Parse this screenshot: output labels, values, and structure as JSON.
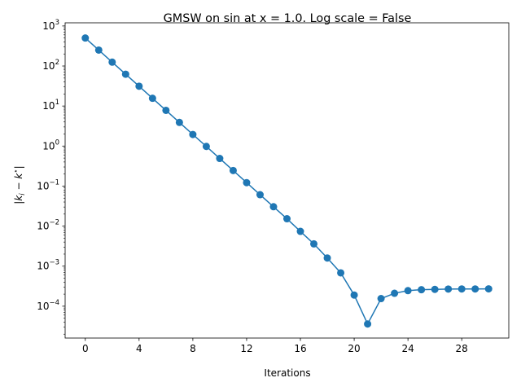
{
  "chart_data": {
    "type": "line",
    "title": "GMSW on sin at x = 1.0. Log scale = False",
    "xlabel": "Iterations",
    "ylabel": "|k_i − k*|",
    "ylabel_parts": {
      "bar_open": "|",
      "k": "k",
      "i": "i",
      "minus": " − ",
      "k2": "k",
      "star": "⋆",
      "bar_close": "|"
    },
    "xlim": [
      -1.5,
      31.5
    ],
    "yscale": "log",
    "ylim": [
      1.6e-05,
      1200
    ],
    "xticks": [
      0,
      4,
      8,
      12,
      16,
      20,
      24,
      28
    ],
    "xtick_labels": [
      "0",
      "4",
      "8",
      "12",
      "16",
      "20",
      "24",
      "28"
    ],
    "yticks": [
      {
        "value": 1000,
        "base": "10",
        "exp": "3"
      },
      {
        "value": 100,
        "base": "10",
        "exp": "2"
      },
      {
        "value": 10,
        "base": "10",
        "exp": "1"
      },
      {
        "value": 1,
        "base": "10",
        "exp": "0"
      },
      {
        "value": 0.1,
        "base": "10",
        "exp": "−1"
      },
      {
        "value": 0.01,
        "base": "10",
        "exp": "−2"
      },
      {
        "value": 0.001,
        "base": "10",
        "exp": "−3"
      },
      {
        "value": 0.0001,
        "base": "10",
        "exp": "−4"
      }
    ],
    "grid": false,
    "legend": false,
    "series": [
      {
        "color": "#1f77b4",
        "marker": "circle",
        "x": [
          0,
          1,
          2,
          3,
          4,
          5,
          6,
          7,
          8,
          9,
          10,
          11,
          12,
          13,
          14,
          15,
          16,
          17,
          18,
          19,
          20,
          21,
          22,
          23,
          24,
          25,
          26,
          27,
          28,
          29,
          30
        ],
        "y": [
          500,
          250,
          125,
          62.5,
          31.25,
          15.6,
          7.8,
          3.9,
          1.95,
          0.98,
          0.49,
          0.245,
          0.122,
          0.061,
          0.0305,
          0.0153,
          0.0074,
          0.0036,
          0.0016,
          0.00068,
          0.00019,
          3.6e-05,
          0.000155,
          0.00021,
          0.000245,
          0.000258,
          0.000263,
          0.000268,
          0.00027,
          0.00027,
          0.000271
        ]
      }
    ]
  }
}
